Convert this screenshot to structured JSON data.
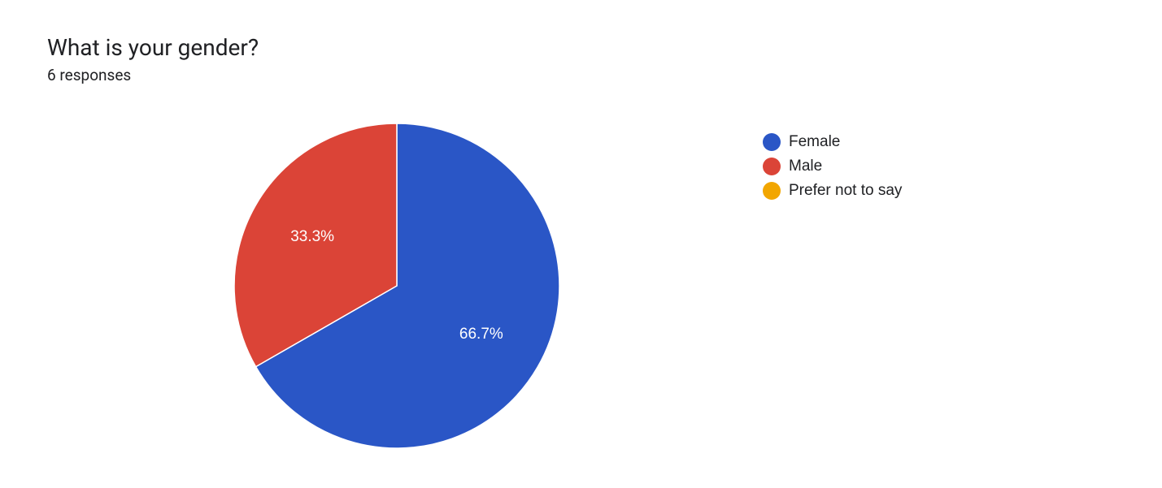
{
  "header": {
    "title": "What is your gender?",
    "subtitle": "6 responses"
  },
  "chart": {
    "type": "pie",
    "background_color": "#ffffff",
    "radius": 200,
    "slice_border_color": "#ffffff",
    "slice_border_width": 1.5,
    "label_fontsize": 19,
    "label_color": "#ffffff",
    "slices": [
      {
        "label": "Female",
        "value": 66.7,
        "display": "66.7%",
        "color": "#2a56c6",
        "show_label": true
      },
      {
        "label": "Male",
        "value": 33.3,
        "display": "33.3%",
        "color": "#db4437",
        "show_label": true
      },
      {
        "label": "Prefer not to say",
        "value": 0,
        "display": "",
        "color": "#f2a600",
        "show_label": false
      }
    ]
  },
  "legend": {
    "fontsize": 19,
    "text_color": "#202124",
    "swatch_shape": "circle",
    "swatch_size": 22,
    "items": [
      {
        "label": "Female",
        "color": "#2a56c6"
      },
      {
        "label": "Male",
        "color": "#db4437"
      },
      {
        "label": "Prefer not to say",
        "color": "#f2a600"
      }
    ]
  }
}
